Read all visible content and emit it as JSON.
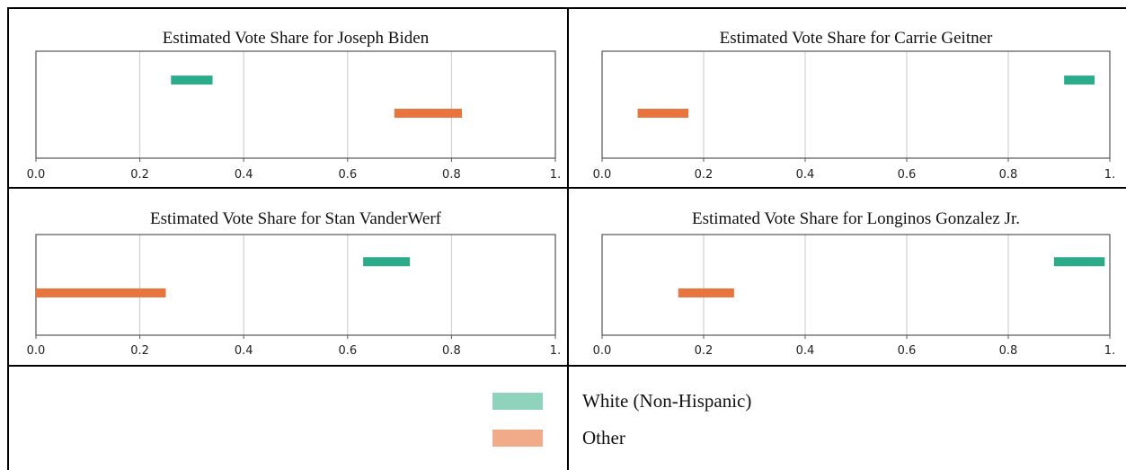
{
  "colors": {
    "white_non_hispanic": "#2bab8a",
    "other": "#e8743e",
    "white_non_hispanic_legend": "#8fd3bd",
    "other_legend": "#f2ab88",
    "grid": "#c8c8c8",
    "axes": "#555555"
  },
  "legend": {
    "items": [
      {
        "label": "White (Non-Hispanic)",
        "series": "white_non_hispanic"
      },
      {
        "label": "Other",
        "series": "other"
      }
    ]
  },
  "chart_data": [
    {
      "type": "bar",
      "title": "Estimated Vote Share for Joseph Biden",
      "xlim": [
        0,
        1
      ],
      "xticks": [
        "0.0",
        "0.2",
        "0.4",
        "0.6",
        "0.8",
        "1."
      ],
      "grid": true,
      "series": [
        {
          "name": "White (Non-Hispanic)",
          "range": [
            0.26,
            0.34
          ]
        },
        {
          "name": "Other",
          "range": [
            0.69,
            0.82
          ]
        }
      ]
    },
    {
      "type": "bar",
      "title": "Estimated Vote Share for Carrie Geitner",
      "xlim": [
        0,
        1
      ],
      "xticks": [
        "0.0",
        "0.2",
        "0.4",
        "0.6",
        "0.8",
        "1."
      ],
      "grid": true,
      "series": [
        {
          "name": "White (Non-Hispanic)",
          "range": [
            0.91,
            0.97
          ]
        },
        {
          "name": "Other",
          "range": [
            0.07,
            0.17
          ]
        }
      ]
    },
    {
      "type": "bar",
      "title": "Estimated Vote Share for Stan VanderWerf",
      "xlim": [
        0,
        1
      ],
      "xticks": [
        "0.0",
        "0.2",
        "0.4",
        "0.6",
        "0.8",
        "1."
      ],
      "grid": true,
      "series": [
        {
          "name": "White (Non-Hispanic)",
          "range": [
            0.63,
            0.72
          ]
        },
        {
          "name": "Other",
          "range": [
            0.0,
            0.25
          ]
        }
      ]
    },
    {
      "type": "bar",
      "title": "Estimated Vote Share for Longinos Gonzalez Jr.",
      "xlim": [
        0,
        1
      ],
      "xticks": [
        "0.0",
        "0.2",
        "0.4",
        "0.6",
        "0.8",
        "1."
      ],
      "grid": true,
      "series": [
        {
          "name": "White (Non-Hispanic)",
          "range": [
            0.89,
            0.99
          ]
        },
        {
          "name": "Other",
          "range": [
            0.15,
            0.26
          ]
        }
      ]
    }
  ]
}
